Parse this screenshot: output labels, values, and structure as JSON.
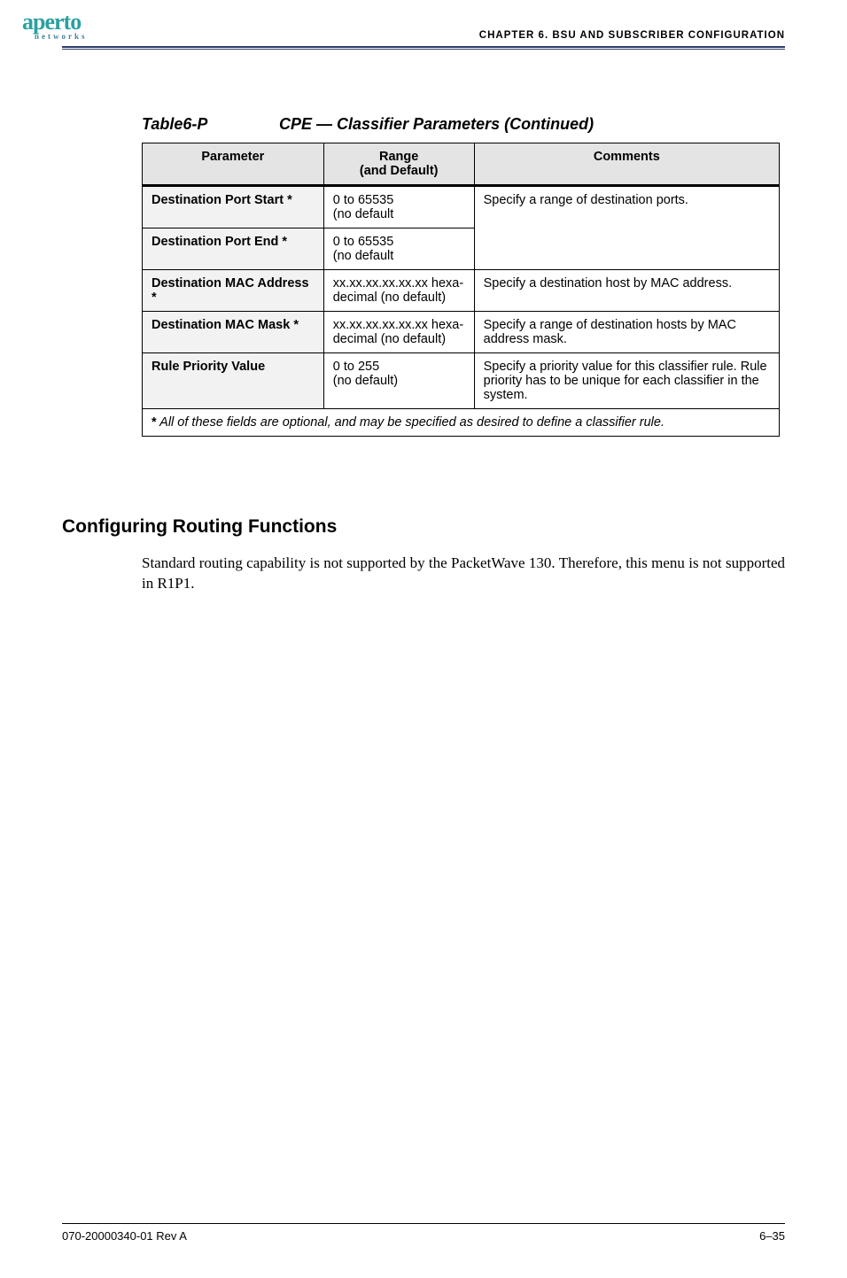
{
  "header": {
    "logo_main": "aperto",
    "logo_sub": "networks",
    "chapter_prefix": "CHAPTER 6.  ",
    "chapter_title": "BSU AND SUBSCRIBER CONFIGURATION"
  },
  "table": {
    "caption_label": "Table6-P",
    "caption_title": "CPE — Classifier Parameters (Continued)",
    "columns": {
      "parameter": "Parameter",
      "range_line1": "Range",
      "range_line2": "(and Default)",
      "comments": "Comments"
    },
    "rows": [
      {
        "parameter": "Destination Port Start *",
        "range_line1": "0 to 65535",
        "range_line2": "(no default",
        "comments": "Specify a range of destination ports.",
        "comments_rowspan": 2
      },
      {
        "parameter": "Destination Port End *",
        "range_line1": "0 to 65535",
        "range_line2": "(no default",
        "comments": null
      },
      {
        "parameter": "Destination MAC Address *",
        "range_line1": "xx.xx.xx.xx.xx.xx hexa-",
        "range_line2": "decimal (no default)",
        "comments": "Specify a destination host by MAC address."
      },
      {
        "parameter": "Destination MAC Mask *",
        "range_line1": "xx.xx.xx.xx.xx.xx hexa-",
        "range_line2": "decimal (no default)",
        "comments": "Specify a range of destination hosts by MAC address mask."
      },
      {
        "parameter": "Rule Priority Value",
        "range_line1": "0 to 255",
        "range_line2": "(no default)",
        "comments": "Specify a priority value for this classifier rule. Rule priority has to be unique for each classifier in the system."
      }
    ],
    "footnote_star": "*",
    "footnote_text": " All of these fields are optional, and may be specified as desired to define a classifier rule."
  },
  "section": {
    "heading": "Configuring Routing Functions",
    "body": "Standard routing capability is not supported by the PacketWave 130. Therefore, this menu is not supported in R1P1."
  },
  "footer": {
    "left": "070-20000340-01 Rev A",
    "right": "6–35"
  }
}
